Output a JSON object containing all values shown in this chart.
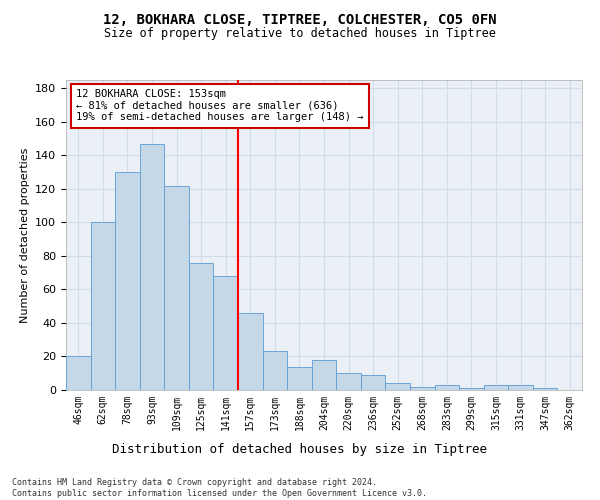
{
  "title1": "12, BOKHARA CLOSE, TIPTREE, COLCHESTER, CO5 0FN",
  "title2": "Size of property relative to detached houses in Tiptree",
  "xlabel": "Distribution of detached houses by size in Tiptree",
  "ylabel": "Number of detached properties",
  "categories": [
    "46sqm",
    "62sqm",
    "78sqm",
    "93sqm",
    "109sqm",
    "125sqm",
    "141sqm",
    "157sqm",
    "173sqm",
    "188sqm",
    "204sqm",
    "220sqm",
    "236sqm",
    "252sqm",
    "268sqm",
    "283sqm",
    "299sqm",
    "315sqm",
    "331sqm",
    "347sqm",
    "362sqm"
  ],
  "values": [
    20,
    100,
    130,
    147,
    122,
    76,
    68,
    46,
    23,
    14,
    18,
    10,
    9,
    4,
    2,
    3,
    1,
    3,
    3,
    1,
    0
  ],
  "bar_color": "#c5d8e8",
  "bar_edge_color": "#5b9bd5",
  "vline_pos": 6.5,
  "annotation_text": "12 BOKHARA CLOSE: 153sqm\n← 81% of detached houses are smaller (636)\n19% of semi-detached houses are larger (148) →",
  "annotation_box_color": "#ffffff",
  "annotation_box_edge": "#cc0000",
  "grid_color": "#d0dce8",
  "background_color": "#eaf0f6",
  "footer": "Contains HM Land Registry data © Crown copyright and database right 2024.\nContains public sector information licensed under the Open Government Licence v3.0.",
  "ylim": [
    0,
    185
  ],
  "yticks": [
    0,
    20,
    40,
    60,
    80,
    100,
    120,
    140,
    160,
    180
  ]
}
